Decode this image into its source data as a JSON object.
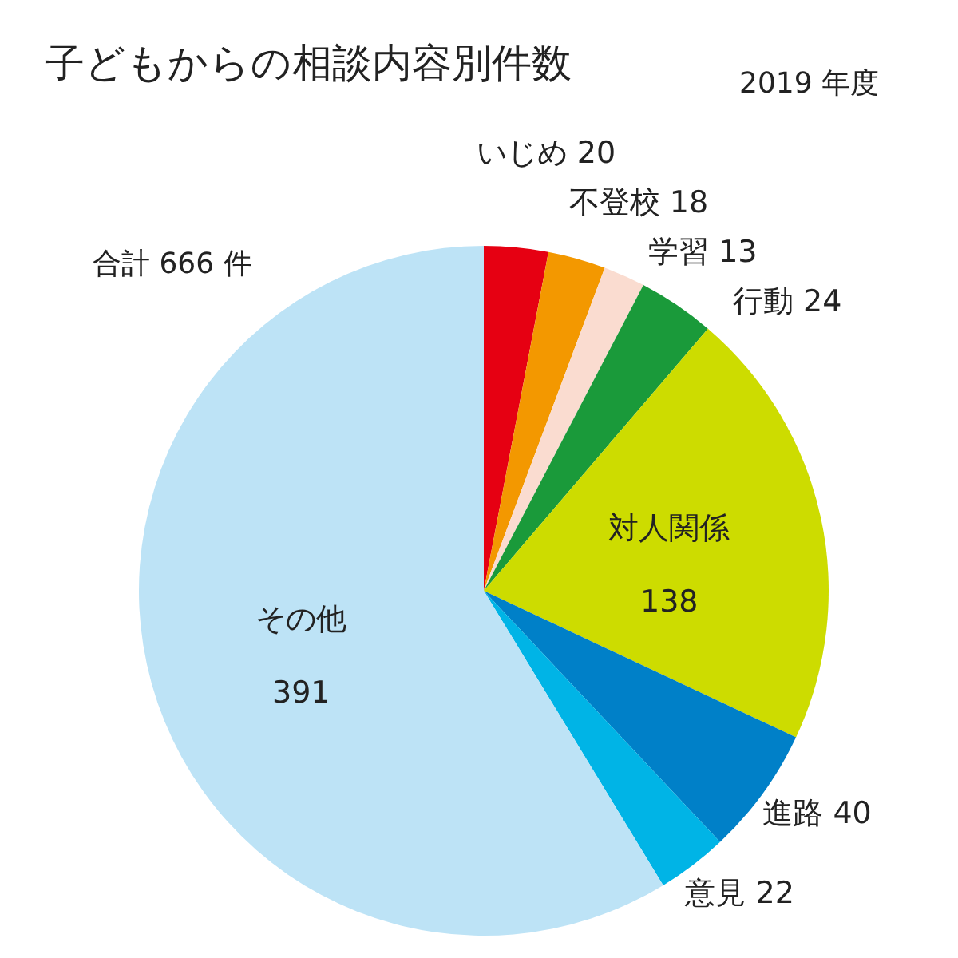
{
  "chart_data": {
    "type": "pie",
    "title": "子どもからの相談内容別件数",
    "subtitle": "2019 年度",
    "annotations": [
      "合計 666 件"
    ],
    "categories": [
      "いじめ",
      "不登校",
      "学習",
      "行動",
      "対人関係",
      "進路",
      "意見",
      "その他"
    ],
    "values": [
      20,
      18,
      13,
      24,
      138,
      40,
      22,
      391
    ],
    "colors": [
      "#e60012",
      "#f39800",
      "#fadcd0",
      "#1a9a3a",
      "#cddc00",
      "#0080c8",
      "#00b4e6",
      "#bde3f6"
    ],
    "data_labels": true
  }
}
